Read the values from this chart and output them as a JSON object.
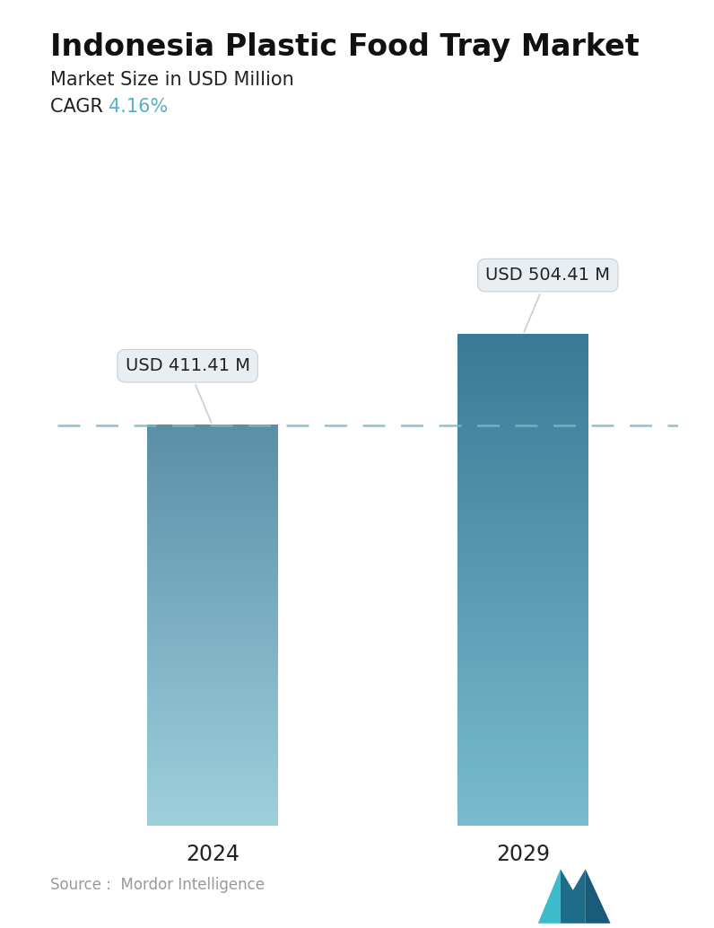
{
  "title": "Indonesia Plastic Food Tray Market",
  "subtitle": "Market Size in USD Million",
  "cagr_label": "CAGR ",
  "cagr_value": "4.16%",
  "cagr_color": "#5aafc7",
  "categories": [
    "2024",
    "2029"
  ],
  "values": [
    411.41,
    504.41
  ],
  "bar_labels": [
    "USD 411.41 M",
    "USD 504.41 M"
  ],
  "dashed_line_y": 411.41,
  "bar1_top_color": "#5a8fa8",
  "bar1_bottom_color": "#9ed0dc",
  "bar2_top_color": "#3a7a96",
  "bar2_bottom_color": "#7abcce",
  "dashed_color": "#7ab8c8",
  "source_text": "Source :  Mordor Intelligence",
  "background_color": "#ffffff",
  "title_fontsize": 24,
  "subtitle_fontsize": 15,
  "cagr_fontsize": 15,
  "xlabel_fontsize": 17,
  "annotation_fontsize": 14,
  "source_fontsize": 12,
  "ylim": [
    0,
    600
  ],
  "bar_width": 0.42
}
